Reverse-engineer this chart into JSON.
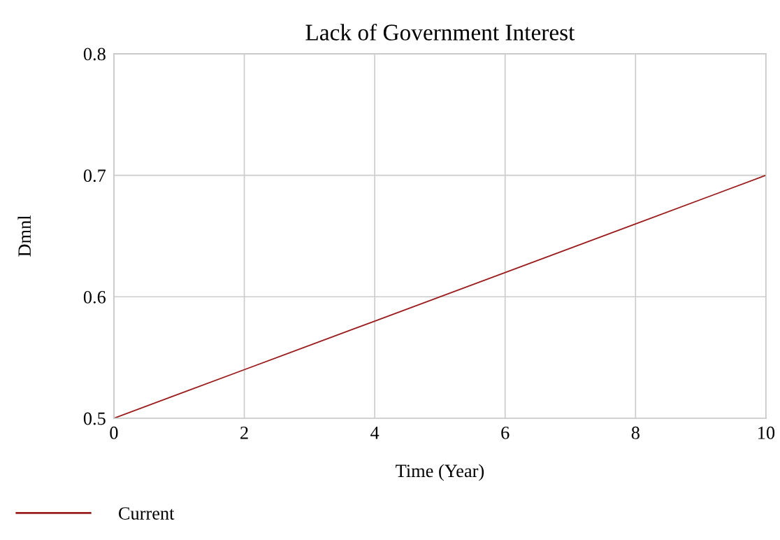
{
  "chart_data": {
    "type": "line",
    "title": "Lack of Government Interest",
    "xlabel": "Time (Year)",
    "ylabel": "Dmnl",
    "x": [
      0,
      2,
      4,
      6,
      8,
      10
    ],
    "series": [
      {
        "name": "Current",
        "color": "#9b1c1c",
        "values": [
          0.5,
          0.54,
          0.58,
          0.62,
          0.66,
          0.7
        ]
      }
    ],
    "xlim": [
      0,
      10
    ],
    "xticks": [
      0,
      2,
      4,
      6,
      8,
      10
    ],
    "ylim": [
      0.5,
      0.8
    ],
    "yticks": [
      0.5,
      0.6,
      0.7,
      0.8
    ],
    "grid": true,
    "legend": "bottom left",
    "marker": "none",
    "line_style": "solid"
  }
}
